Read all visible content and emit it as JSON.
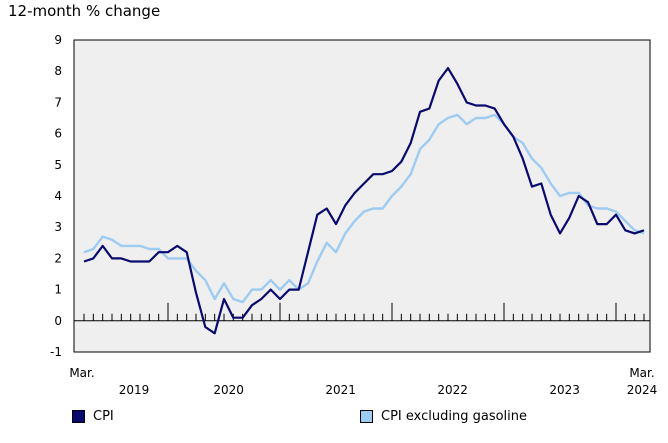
{
  "chart_data": {
    "type": "line",
    "ylabel": "12-month % change",
    "ylim": [
      -1,
      9
    ],
    "yticks": [
      -1,
      0,
      1,
      2,
      3,
      4,
      5,
      6,
      7,
      8,
      9
    ],
    "x_start_label": [
      "Mar.",
      "2019"
    ],
    "x_end_label": [
      "Mar.",
      "2024"
    ],
    "year_labels": [
      "2019",
      "2020",
      "2021",
      "2022",
      "2023"
    ],
    "months": 61,
    "series": [
      {
        "name": "CPI",
        "color": "#0a0a6e",
        "values": [
          1.9,
          2.0,
          2.4,
          2.0,
          2.0,
          1.9,
          1.9,
          1.9,
          2.2,
          2.2,
          2.4,
          2.2,
          0.9,
          -0.2,
          -0.4,
          0.7,
          0.1,
          0.1,
          0.5,
          0.7,
          1.0,
          0.7,
          1.0,
          1.0,
          2.2,
          3.4,
          3.6,
          3.1,
          3.7,
          4.1,
          4.4,
          4.7,
          4.7,
          4.8,
          5.1,
          5.7,
          6.7,
          6.8,
          7.7,
          8.1,
          7.6,
          7.0,
          6.9,
          6.9,
          6.8,
          6.3,
          5.9,
          5.2,
          4.3,
          4.4,
          3.4,
          2.8,
          3.3,
          4.0,
          3.8,
          3.1,
          3.1,
          3.4,
          2.9,
          2.8,
          2.9
        ]
      },
      {
        "name": "CPI excluding gasoline",
        "color": "#9ecbf1",
        "values": [
          2.2,
          2.3,
          2.7,
          2.6,
          2.4,
          2.4,
          2.4,
          2.3,
          2.3,
          2.0,
          2.0,
          2.0,
          1.6,
          1.3,
          0.7,
          1.2,
          0.7,
          0.6,
          1.0,
          1.0,
          1.3,
          1.0,
          1.3,
          1.0,
          1.2,
          1.9,
          2.5,
          2.2,
          2.8,
          3.2,
          3.5,
          3.6,
          3.6,
          4.0,
          4.3,
          4.7,
          5.5,
          5.8,
          6.3,
          6.5,
          6.6,
          6.3,
          6.5,
          6.5,
          6.6,
          6.3,
          5.9,
          5.7,
          5.2,
          4.9,
          4.4,
          4.0,
          4.1,
          4.1,
          3.7,
          3.6,
          3.6,
          3.5,
          3.2,
          2.9,
          2.8
        ]
      }
    ],
    "grid": false,
    "legend_position": "bottom"
  }
}
